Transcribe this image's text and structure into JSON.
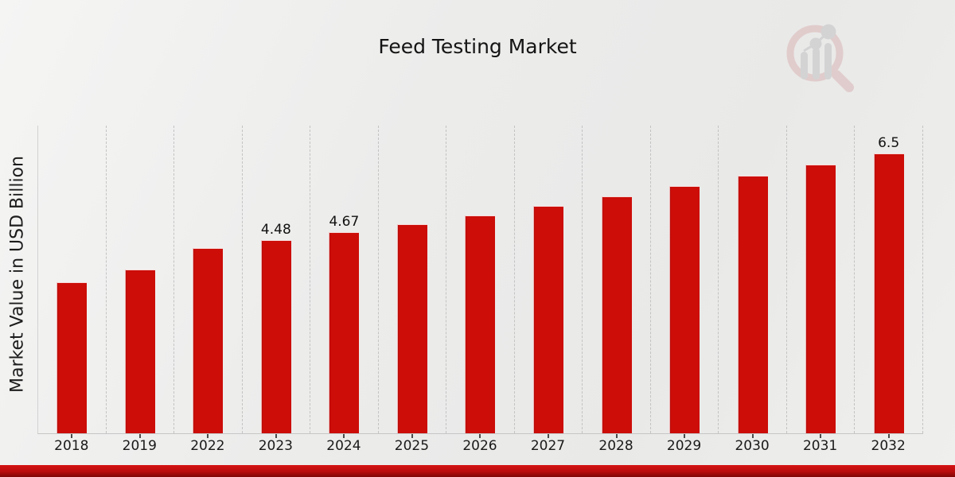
{
  "header": {
    "title": "Feed Testing Market"
  },
  "y_axis": {
    "label": "Market Value in USD Billion"
  },
  "watermark": {
    "icon": "magnifier-bar-chart-logo",
    "ring_color": "#d6a9a9",
    "glyph_color": "#b9b9bd"
  },
  "footer": {
    "band_color_top": "#d51313",
    "band_color_mid": "#b90c0c",
    "band_color_bottom": "#7e0707"
  },
  "chart_data": {
    "type": "bar",
    "title": "Feed Testing Market",
    "xlabel": "",
    "ylabel": "Market Value in USD Billion",
    "categories": [
      "2018",
      "2019",
      "2022",
      "2023",
      "2024",
      "2025",
      "2026",
      "2027",
      "2028",
      "2029",
      "2030",
      "2031",
      "2032"
    ],
    "values": [
      3.5,
      3.8,
      4.3,
      4.48,
      4.67,
      4.85,
      5.06,
      5.28,
      5.5,
      5.74,
      5.98,
      6.24,
      6.5
    ],
    "bar_labels": [
      "",
      "",
      "",
      "4.48",
      "4.67",
      "",
      "",
      "",
      "",
      "",
      "",
      "",
      "6.5"
    ],
    "bar_color": "#cc0d08",
    "ylim": [
      0,
      7.2
    ],
    "grid": "vertical-dashed",
    "legend": "none",
    "tick_color": "#4a4a4a"
  }
}
